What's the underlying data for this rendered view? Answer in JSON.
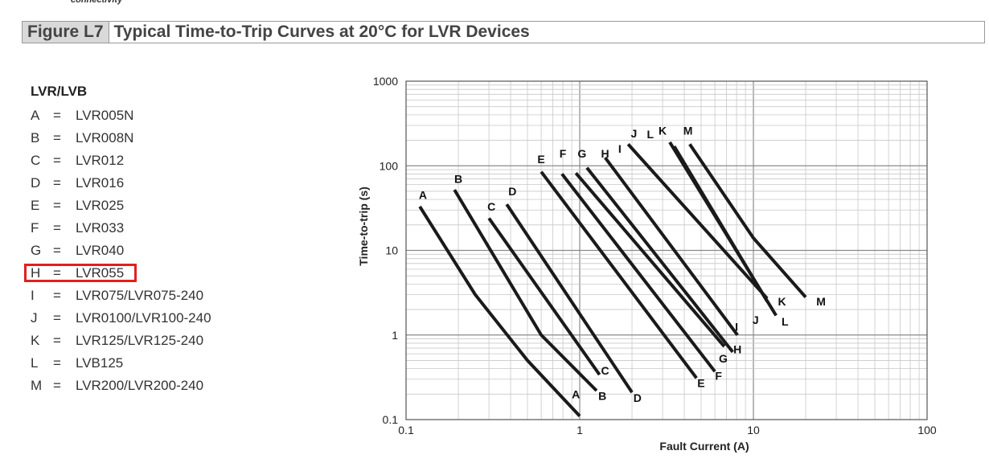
{
  "brand": "connectivity",
  "figure": {
    "label": "Figure L7",
    "title": "Typical Time-to-Trip Curves at 20°C for LVR Devices"
  },
  "legend": {
    "title": "LVR/LVB",
    "highlighted": "H",
    "items": [
      {
        "key": "A",
        "eq": "=",
        "value": "LVR005N"
      },
      {
        "key": "B",
        "eq": "=",
        "value": "LVR008N"
      },
      {
        "key": "C",
        "eq": "=",
        "value": "LVR012"
      },
      {
        "key": "D",
        "eq": "=",
        "value": "LVR016"
      },
      {
        "key": "E",
        "eq": "=",
        "value": "LVR025"
      },
      {
        "key": "F",
        "eq": "=",
        "value": "LVR033"
      },
      {
        "key": "G",
        "eq": "=",
        "value": "LVR040"
      },
      {
        "key": "H",
        "eq": "=",
        "value": "LVR055"
      },
      {
        "key": "I",
        "eq": "=",
        "value": "LVR075/LVR075-240"
      },
      {
        "key": "J",
        "eq": "=",
        "value": "LVR0100/LVR100-240"
      },
      {
        "key": "K",
        "eq": "=",
        "value": "LVR125/LVR125-240"
      },
      {
        "key": "L",
        "eq": "=",
        "value": "LVB125"
      },
      {
        "key": "M",
        "eq": "=",
        "value": "LVR200/LVR200-240"
      }
    ]
  },
  "colors": {
    "highlight": "#e02020",
    "curve": "#1a1a1a",
    "grid": "#c8c8c8"
  },
  "chart_data": {
    "type": "line",
    "title": "",
    "xlabel": "Fault Current (A)",
    "ylabel": "Time-to-trip (s)",
    "xscale": "log",
    "yscale": "log",
    "xlim": [
      0.1,
      100
    ],
    "ylim": [
      0.1,
      1000
    ],
    "xticks": [
      {
        "v": 0.1,
        "t": "0.1"
      },
      {
        "v": 1,
        "t": "1"
      },
      {
        "v": 10,
        "t": "10"
      },
      {
        "v": 100,
        "t": "100"
      }
    ],
    "yticks": [
      {
        "v": 0.1,
        "t": "0.1"
      },
      {
        "v": 1,
        "t": "1"
      },
      {
        "v": 10,
        "t": "10"
      },
      {
        "v": 100,
        "t": "100"
      },
      {
        "v": 1000,
        "t": "1000"
      }
    ],
    "grid": true,
    "series": [
      {
        "name": "A",
        "points": [
          [
            0.12,
            33
          ],
          [
            0.25,
            3
          ],
          [
            0.5,
            0.5
          ],
          [
            1.0,
            0.11
          ]
        ]
      },
      {
        "name": "B",
        "points": [
          [
            0.19,
            52
          ],
          [
            0.6,
            1.0
          ],
          [
            1.25,
            0.22
          ]
        ]
      },
      {
        "name": "C",
        "points": [
          [
            0.3,
            24
          ],
          [
            1.3,
            0.34
          ]
        ]
      },
      {
        "name": "D",
        "points": [
          [
            0.38,
            35
          ],
          [
            2.0,
            0.21
          ]
        ]
      },
      {
        "name": "E",
        "points": [
          [
            0.6,
            85
          ],
          [
            4.7,
            0.31
          ]
        ]
      },
      {
        "name": "F",
        "points": [
          [
            0.79,
            80
          ],
          [
            6.0,
            0.37
          ]
        ]
      },
      {
        "name": "G",
        "points": [
          [
            0.95,
            82
          ],
          [
            6.8,
            0.73
          ]
        ]
      },
      {
        "name": "H",
        "points": [
          [
            1.1,
            95
          ],
          [
            7.6,
            0.63
          ]
        ]
      },
      {
        "name": "I",
        "points": [
          [
            1.4,
            125
          ],
          [
            8.1,
            1.0
          ]
        ]
      },
      {
        "name": "J",
        "points": [
          [
            1.9,
            180
          ],
          [
            12,
            2.7
          ]
        ]
      },
      {
        "name": "K",
        "points": [
          [
            3.5,
            170
          ],
          [
            12,
            2.5
          ]
        ]
      },
      {
        "name": "L",
        "points": [
          [
            3.3,
            190
          ],
          [
            13.5,
            1.7
          ]
        ]
      },
      {
        "name": "M",
        "points": [
          [
            4.3,
            180
          ],
          [
            10,
            14
          ],
          [
            20,
            2.8
          ]
        ]
      }
    ],
    "labels": [
      {
        "text": "A",
        "x": 0.125,
        "y": 45
      },
      {
        "text": "A",
        "x": 0.95,
        "y": 0.2
      },
      {
        "text": "B",
        "x": 0.2,
        "y": 70
      },
      {
        "text": "B",
        "x": 1.35,
        "y": 0.19
      },
      {
        "text": "C",
        "x": 0.31,
        "y": 33
      },
      {
        "text": "C",
        "x": 1.4,
        "y": 0.38
      },
      {
        "text": "D",
        "x": 0.41,
        "y": 50
      },
      {
        "text": "D",
        "x": 2.15,
        "y": 0.18
      },
      {
        "text": "E",
        "x": 0.6,
        "y": 120
      },
      {
        "text": "E",
        "x": 5.0,
        "y": 0.27
      },
      {
        "text": "F",
        "x": 0.8,
        "y": 140
      },
      {
        "text": "F",
        "x": 6.3,
        "y": 0.33
      },
      {
        "text": "G",
        "x": 1.03,
        "y": 140
      },
      {
        "text": "G",
        "x": 6.7,
        "y": 0.53
      },
      {
        "text": "H",
        "x": 1.4,
        "y": 140
      },
      {
        "text": "H",
        "x": 8.1,
        "y": 0.68
      },
      {
        "text": "I",
        "x": 1.7,
        "y": 160
      },
      {
        "text": "I",
        "x": 8.0,
        "y": 1.25
      },
      {
        "text": "J",
        "x": 2.05,
        "y": 240
      },
      {
        "text": "J",
        "x": 10.3,
        "y": 1.5
      },
      {
        "text": "K",
        "x": 3.0,
        "y": 260
      },
      {
        "text": "K",
        "x": 14.6,
        "y": 2.5
      },
      {
        "text": "L",
        "x": 2.55,
        "y": 235
      },
      {
        "text": "L",
        "x": 15.2,
        "y": 1.45
      },
      {
        "text": "M",
        "x": 4.2,
        "y": 260
      },
      {
        "text": "M",
        "x": 24.5,
        "y": 2.5
      }
    ]
  }
}
